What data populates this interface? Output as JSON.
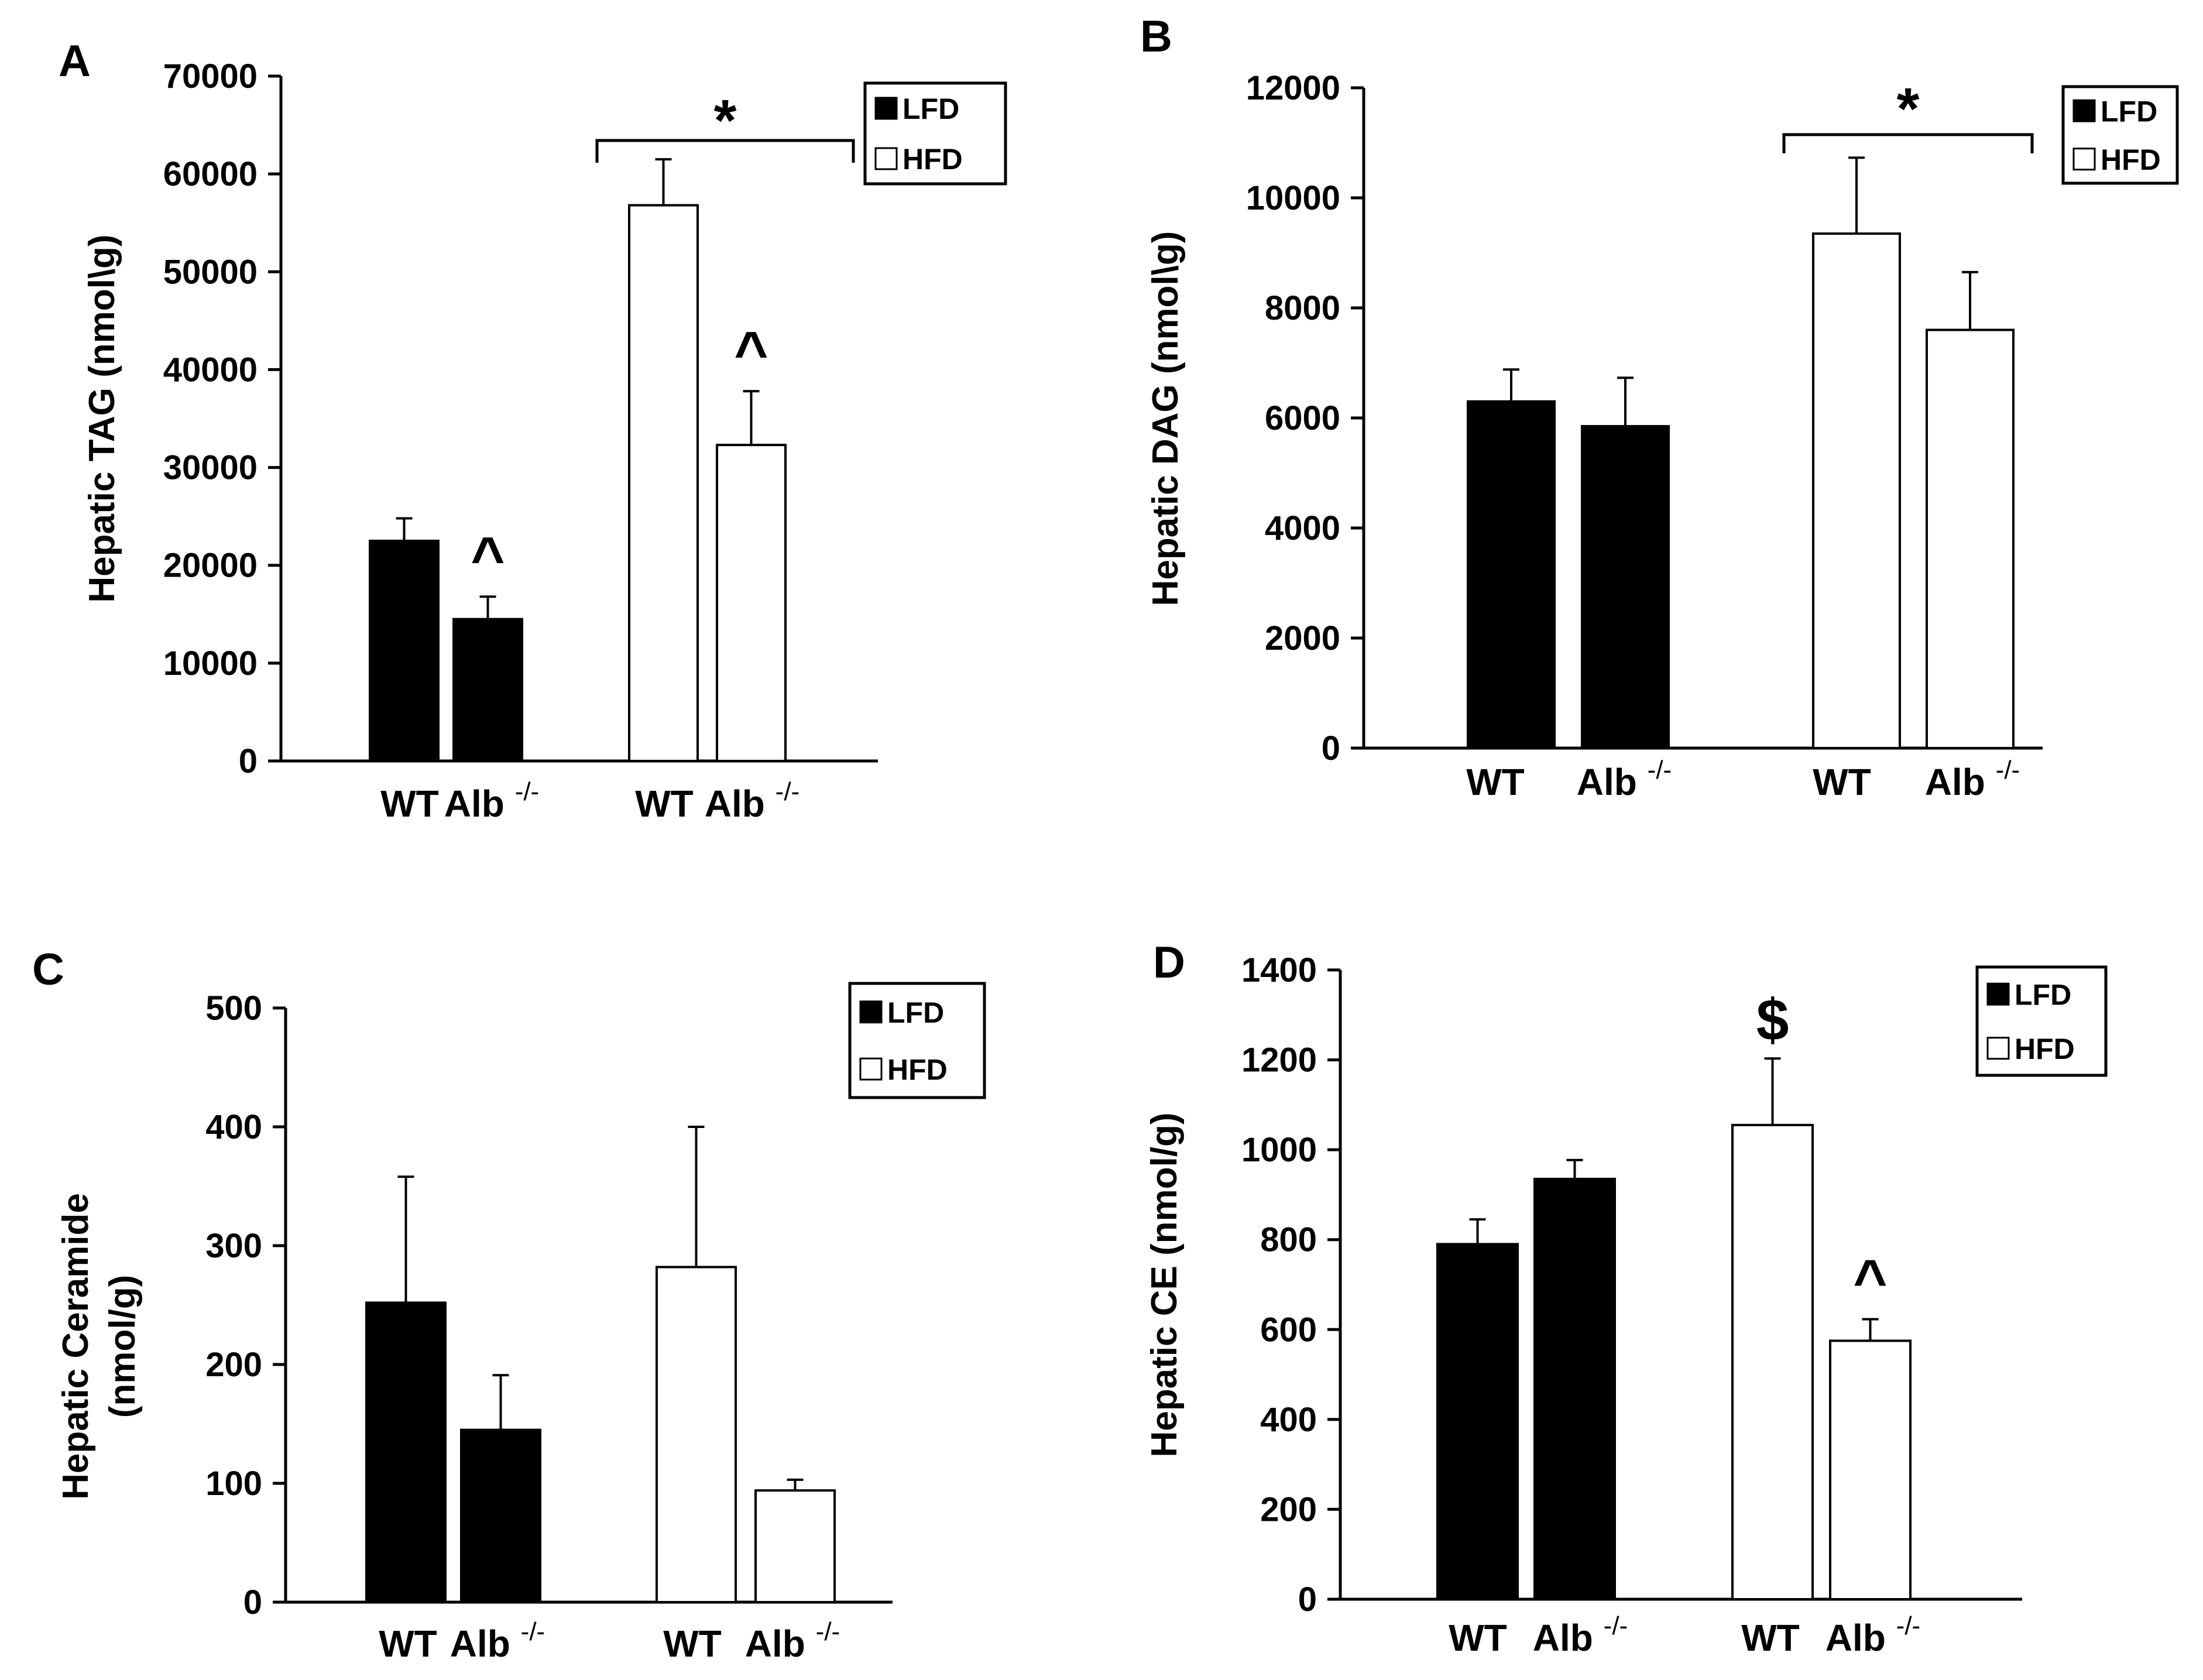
{
  "chart_data": [
    {
      "type": "bar",
      "panel": "A",
      "ylabel": "Hepatic TAG (nmol\\g)",
      "ylim": [
        0,
        70000
      ],
      "yticks": [
        0,
        10000,
        20000,
        30000,
        40000,
        50000,
        60000,
        70000
      ],
      "ytick_labels": [
        "0",
        "10000",
        "20000",
        "30000",
        "40000",
        "50000",
        "60000",
        "70000"
      ],
      "group_labels": [
        [
          "WT",
          "Alb"
        ],
        [
          "WT",
          "Alb"
        ]
      ],
      "superscript": "-/-",
      "legend": [
        "LFD",
        "HFD"
      ],
      "bars": [
        {
          "diet": "LFD",
          "genotype": "WT",
          "value": 22500,
          "err": 2300,
          "mark": ""
        },
        {
          "diet": "LFD",
          "genotype": "Alb-/-",
          "value": 14500,
          "err": 2300,
          "mark": "^"
        },
        {
          "diet": "HFD",
          "genotype": "WT",
          "value": 56800,
          "err": 4700,
          "mark": ""
        },
        {
          "diet": "HFD",
          "genotype": "Alb-/-",
          "value": 32300,
          "err": 5500,
          "mark": "^"
        }
      ],
      "bracket_mark": "*"
    },
    {
      "type": "bar",
      "panel": "B",
      "ylabel": "Hepatic DAG (nmol\\g)",
      "ylim": [
        0,
        12000
      ],
      "yticks": [
        0,
        2000,
        4000,
        6000,
        8000,
        10000,
        12000
      ],
      "ytick_labels": [
        "0",
        "2000",
        "4000",
        "6000",
        "8000",
        "10000",
        "12000"
      ],
      "group_labels": [
        [
          "WT",
          "Alb"
        ],
        [
          "WT",
          "Alb"
        ]
      ],
      "superscript": "-/-",
      "legend": [
        "LFD",
        "HFD"
      ],
      "bars": [
        {
          "diet": "LFD",
          "genotype": "WT",
          "value": 6300,
          "err": 580,
          "mark": ""
        },
        {
          "diet": "LFD",
          "genotype": "Alb-/-",
          "value": 5850,
          "err": 880,
          "mark": ""
        },
        {
          "diet": "HFD",
          "genotype": "WT",
          "value": 9350,
          "err": 1380,
          "mark": ""
        },
        {
          "diet": "HFD",
          "genotype": "Alb-/-",
          "value": 7600,
          "err": 1050,
          "mark": ""
        }
      ],
      "bracket_mark": "*"
    },
    {
      "type": "bar",
      "panel": "C",
      "ylabel": [
        "Hepatic Ceramide",
        "(nmol/g)"
      ],
      "ylim": [
        0,
        500
      ],
      "yticks": [
        0,
        100,
        200,
        300,
        400,
        500
      ],
      "ytick_labels": [
        "0",
        "100",
        "200",
        "300",
        "400",
        "500"
      ],
      "group_labels": [
        [
          "WT",
          "Alb"
        ],
        [
          "WT",
          "Alb"
        ]
      ],
      "superscript": "-/-",
      "legend": [
        "LFD",
        "HFD"
      ],
      "bars": [
        {
          "diet": "LFD",
          "genotype": "WT",
          "value": 252,
          "err": 106,
          "mark": ""
        },
        {
          "diet": "LFD",
          "genotype": "Alb-/-",
          "value": 145,
          "err": 46,
          "mark": ""
        },
        {
          "diet": "HFD",
          "genotype": "WT",
          "value": 282,
          "err": 118,
          "mark": ""
        },
        {
          "diet": "HFD",
          "genotype": "Alb-/-",
          "value": 94,
          "err": 9,
          "mark": ""
        }
      ],
      "bracket_mark": ""
    },
    {
      "type": "bar",
      "panel": "D",
      "ylabel": "Hepatic CE (nmol/g)",
      "ylim": [
        0,
        1400
      ],
      "yticks": [
        0,
        200,
        400,
        600,
        800,
        1000,
        1200,
        1400
      ],
      "ytick_labels": [
        "0",
        "200",
        "400",
        "600",
        "800",
        "1000",
        "1200",
        "1400"
      ],
      "group_labels": [
        [
          "WT",
          "Alb"
        ],
        [
          "WT",
          "Alb"
        ]
      ],
      "superscript": "-/-",
      "legend": [
        "LFD",
        "HFD"
      ],
      "bars": [
        {
          "diet": "LFD",
          "genotype": "WT",
          "value": 790,
          "err": 55,
          "mark": ""
        },
        {
          "diet": "LFD",
          "genotype": "Alb-/-",
          "value": 935,
          "err": 42,
          "mark": ""
        },
        {
          "diet": "HFD",
          "genotype": "WT",
          "value": 1055,
          "err": 148,
          "mark": "$"
        },
        {
          "diet": "HFD",
          "genotype": "Alb-/-",
          "value": 575,
          "err": 48,
          "mark": "^"
        }
      ],
      "bracket_mark": ""
    }
  ]
}
